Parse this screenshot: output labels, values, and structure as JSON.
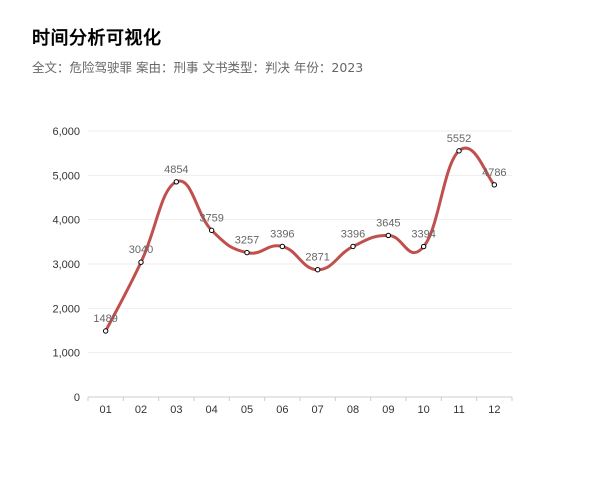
{
  "header": {
    "title": "时间分析可视化",
    "subtitle": "全文：危险驾驶罪  案由：刑事  文书类型：判决  年份：2023"
  },
  "chart_data": {
    "type": "line",
    "smooth": true,
    "categories": [
      "01",
      "02",
      "03",
      "04",
      "05",
      "06",
      "07",
      "08",
      "09",
      "10",
      "11",
      "12"
    ],
    "series": [
      {
        "values": [
          1489,
          3040,
          4854,
          3759,
          3257,
          3396,
          2871,
          3396,
          3645,
          3394,
          5552,
          4786
        ]
      }
    ],
    "data_labels": [
      "1489",
      "3040",
      "4854",
      "3759",
      "3257",
      "3396",
      "2871",
      "3396",
      "3645",
      "3394",
      "5552",
      "4786"
    ],
    "ylim": [
      0,
      6000
    ],
    "yticks": [
      0,
      1000,
      2000,
      3000,
      4000,
      5000,
      6000
    ],
    "ytick_labels": [
      "0",
      "1,000",
      "2,000",
      "3,000",
      "4,000",
      "5,000",
      "6,000"
    ],
    "grid": true,
    "colors": {
      "line": "#c0504d",
      "marker_fill": "#ffffff",
      "marker_stroke": "#000000",
      "grid": "#eeeeee",
      "axis": "#cccccc"
    }
  }
}
